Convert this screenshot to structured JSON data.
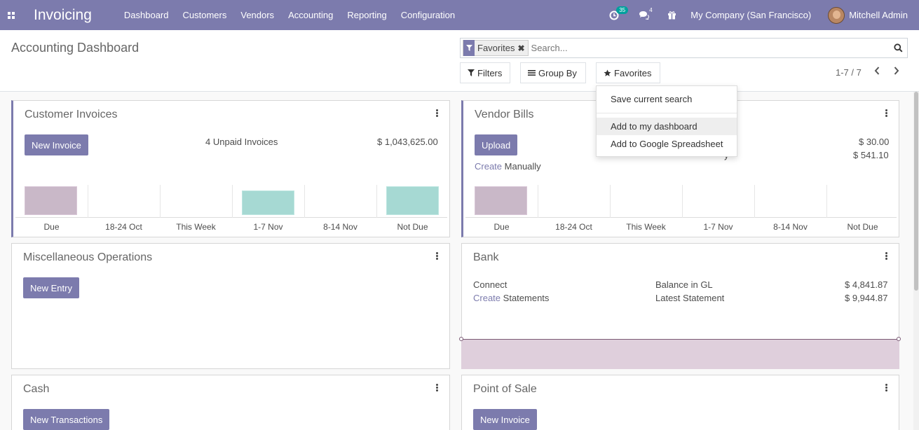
{
  "navbar": {
    "brand": "Invoicing",
    "menu": [
      "Dashboard",
      "Customers",
      "Vendors",
      "Accounting",
      "Reporting",
      "Configuration"
    ],
    "activity_count": "35",
    "messages_count": "4",
    "company": "My Company (San Francisco)",
    "user": "Mitchell Admin",
    "icons": [
      "apps-grid-icon",
      "clock-icon",
      "chat-icon",
      "gift-icon"
    ]
  },
  "control_panel": {
    "title": "Accounting Dashboard",
    "facet_label": "Favorites",
    "search_placeholder": "Search...",
    "filters_label": "Filters",
    "groupby_label": "Group By",
    "favorites_label": "Favorites",
    "pager": "1-7 / 7"
  },
  "favorites_menu": {
    "items": [
      "Save current search",
      "Add to my dashboard",
      "Add to Google Spreadsheet"
    ]
  },
  "cards": {
    "customer_invoices": {
      "title": "Customer Invoices",
      "button": "New Invoice",
      "unpaid_label": "4 Unpaid Invoices",
      "unpaid_amount": "$ 1,043,625.00",
      "chart_labels": [
        "Due",
        "18-24 Oct",
        "This Week",
        "1-7 Nov",
        "8-14 Nov",
        "Not Due"
      ]
    },
    "vendor_bills": {
      "title": "Vendor Bills",
      "button": "Upload",
      "create_link": "Create",
      "create_suffix": "Manually",
      "partial_label": "y",
      "amount1": "$ 30.00",
      "amount2": "$ 541.10",
      "chart_labels": [
        "Due",
        "18-24 Oct",
        "This Week",
        "1-7 Nov",
        "8-14 Nov",
        "Not Due"
      ]
    },
    "misc": {
      "title": "Miscellaneous Operations",
      "button": "New Entry"
    },
    "bank": {
      "title": "Bank",
      "connect_link": "Connect",
      "create_link": "Create",
      "create_suffix": "Statements",
      "balance_label": "Balance in GL",
      "balance_value": "$ 4,841.87",
      "latest_label": "Latest Statement",
      "latest_value": "$ 9,944.87"
    },
    "cash": {
      "title": "Cash",
      "button": "New Transactions"
    },
    "pos": {
      "title": "Point of Sale",
      "button": "New Invoice"
    }
  },
  "colors": {
    "primary": "#7c7bad",
    "due_bar": "#c9b8c8",
    "not_due_bar": "#a6d9d3",
    "badge": "#00a09d"
  }
}
